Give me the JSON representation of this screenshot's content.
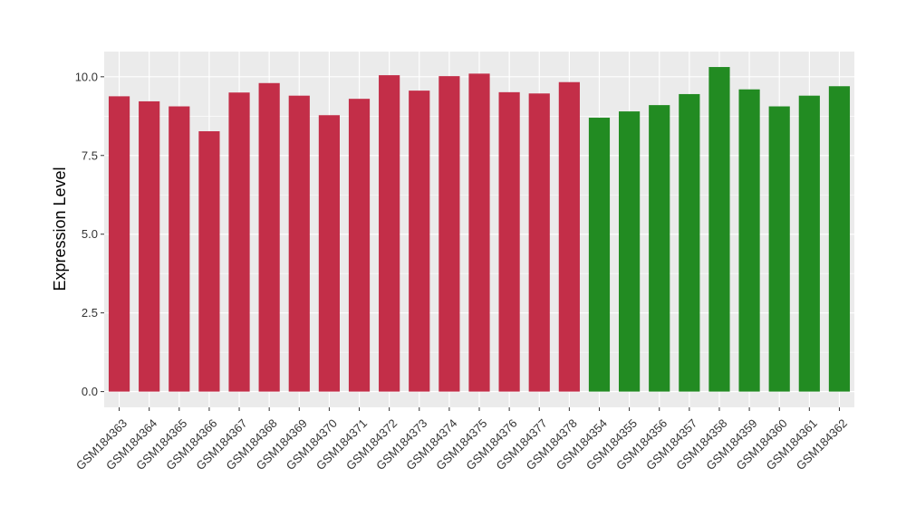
{
  "chart_data": {
    "type": "bar",
    "ylabel": "Expression Level",
    "xlabel": "",
    "ylim": [
      -0.5,
      10.8
    ],
    "y_ticks": [
      0.0,
      2.5,
      5.0,
      7.5,
      10.0
    ],
    "y_tick_labels": [
      "0.0",
      "2.5",
      "5.0",
      "7.5",
      "10.0"
    ],
    "grid": true,
    "legend": "none",
    "colors": {
      "group_1": "#c32e48",
      "group_2": "#228b22",
      "panel": "#ebebeb",
      "grid": "#ffffff"
    },
    "categories": [
      "GSM184363",
      "GSM184364",
      "GSM184365",
      "GSM184366",
      "GSM184367",
      "GSM184368",
      "GSM184369",
      "GSM184370",
      "GSM184371",
      "GSM184372",
      "GSM184373",
      "GSM184374",
      "GSM184375",
      "GSM184376",
      "GSM184377",
      "GSM184378",
      "GSM184354",
      "GSM184355",
      "GSM184356",
      "GSM184357",
      "GSM184358",
      "GSM184359",
      "GSM184360",
      "GSM184361",
      "GSM184362"
    ],
    "values": [
      9.38,
      9.22,
      9.06,
      8.27,
      9.5,
      9.8,
      9.4,
      8.78,
      9.3,
      10.05,
      9.56,
      10.02,
      10.1,
      9.51,
      9.47,
      9.83,
      8.7,
      8.9,
      9.1,
      9.45,
      10.31,
      9.6,
      9.06,
      9.4,
      9.7
    ],
    "groups": [
      1,
      1,
      1,
      1,
      1,
      1,
      1,
      1,
      1,
      1,
      1,
      1,
      1,
      1,
      1,
      1,
      2,
      2,
      2,
      2,
      2,
      2,
      2,
      2,
      2
    ]
  }
}
